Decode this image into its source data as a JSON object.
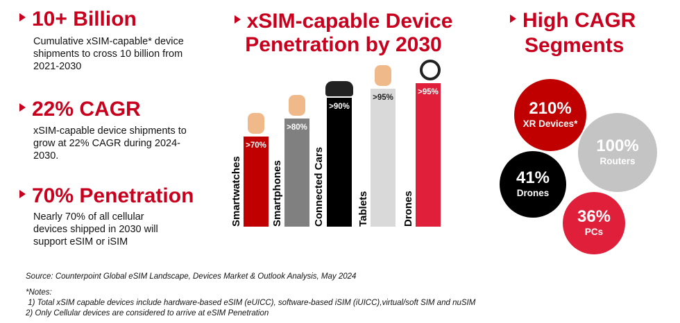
{
  "left": [
    {
      "title": "10+ Billion",
      "body": "Cumulative xSIM-capable* device shipments to cross 10 billion from 2021-2030"
    },
    {
      "title": "22% CAGR",
      "body": "xSIM-capable device shipments to grow at 22% CAGR during 2024-2030."
    },
    {
      "title": "70% Penetration",
      "body": "Nearly 70% of all cellular devices shipped in 2030 will support eSIM or iSIM"
    }
  ],
  "chart_data": {
    "type": "bar",
    "title": "xSIM-capable Device Penetration by 2030",
    "categories": [
      "Smartwatches",
      "Smartphones",
      "Connected Cars",
      "Tablets",
      "Drones"
    ],
    "values": [
      70,
      80,
      90,
      95,
      95
    ],
    "labels": [
      ">70%",
      ">80%",
      ">90%",
      ">95%",
      ">95%"
    ],
    "colors": [
      "#c00000",
      "#808080",
      "#000000",
      "#d9d9d9",
      "#e0203a"
    ],
    "label_colors": [
      "#ffffff",
      "#ffffff",
      "#ffffff",
      "#222222",
      "#ffffff"
    ],
    "icons": [
      "hand-smartwatch-icon",
      "hand-smartphone-icon",
      "car-icon",
      "hand-tablet-icon",
      "drone-icon"
    ],
    "grid": false
  },
  "right": {
    "title_line1": "High CAGR",
    "title_line2": "Segments",
    "segments": [
      {
        "value": "210%",
        "label": "XR Devices*",
        "color": "#c00000"
      },
      {
        "value": "100%",
        "label": "Routers",
        "color": "#c4c4c4"
      },
      {
        "value": "41%",
        "label": "Drones",
        "color": "#000000"
      },
      {
        "value": "36%",
        "label": "PCs",
        "color": "#e0203a"
      }
    ]
  },
  "footer": {
    "source": "Source: Counterpoint Global eSIM Landscape, Devices Market & Outlook Analysis, May 2024",
    "notes_title": "*Notes:",
    "note1": " 1) Total xSIM capable devices include hardware-based eSIM (eUICC), software-based iSIM (iUICC),virtual/soft SIM and nuSIM",
    "note2": "2) Only Cellular devices are considered to arrive at eSIM Penetration"
  }
}
